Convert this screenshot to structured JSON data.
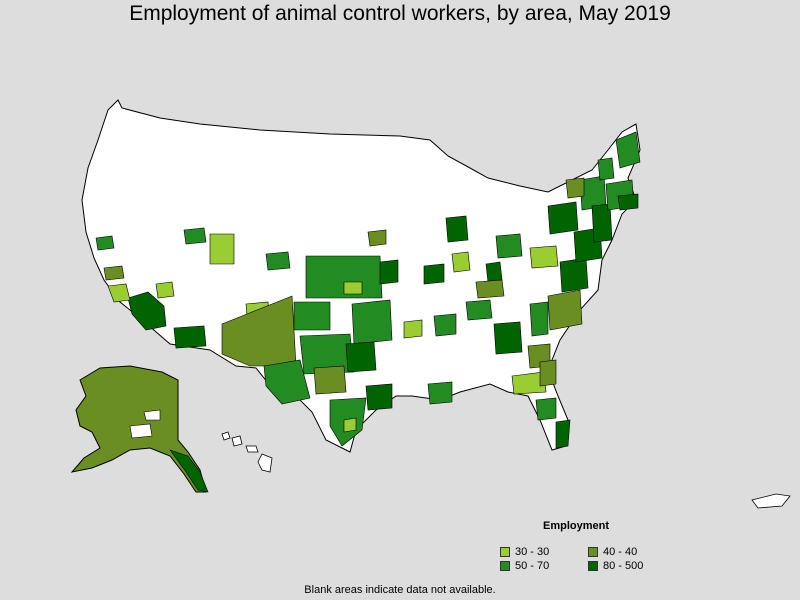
{
  "title": "Employment of animal control workers, by area, May 2019",
  "legend": {
    "title": "Employment",
    "items": [
      {
        "label": "30 - 30",
        "color": "#9acd32"
      },
      {
        "label": "40 - 40",
        "color": "#6b8e23"
      },
      {
        "label": "50 - 70",
        "color": "#228b22"
      },
      {
        "label": "80 - 500",
        "color": "#006400"
      }
    ]
  },
  "note": "Blank areas indicate data not available.",
  "colors": {
    "background": "#dddddd",
    "no_data": "#ffffff",
    "border": "#000000"
  }
}
